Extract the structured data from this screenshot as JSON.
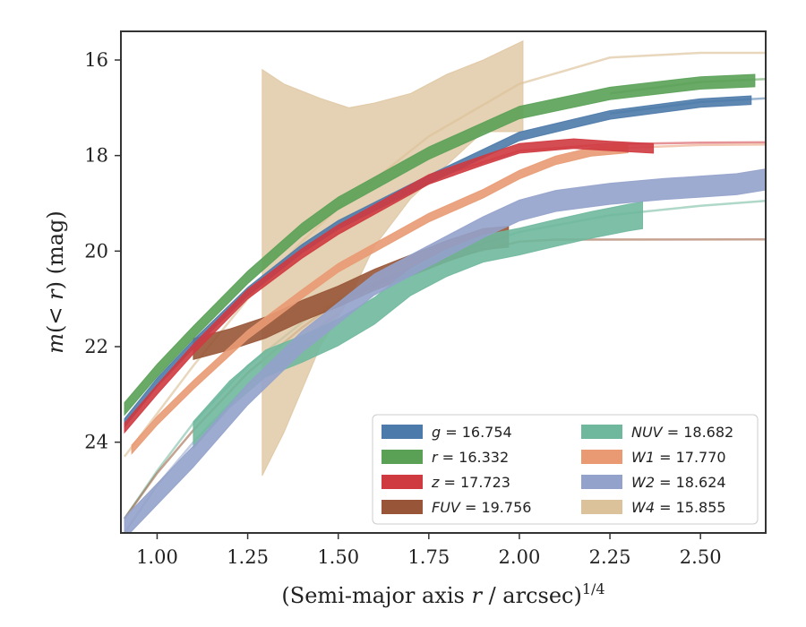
{
  "chart_data": {
    "type": "line",
    "xlabel": "(Semi-major axis r / arcsec)^1/4",
    "ylabel": "m(< r) (mag)",
    "xlim": [
      0.9,
      2.68
    ],
    "ylim": [
      25.9,
      15.4
    ],
    "y_inverted": true,
    "grid": false,
    "legend_placement": "bottom-right",
    "xticks": [
      "1.00",
      "1.25",
      "1.50",
      "1.75",
      "2.00",
      "2.25",
      "2.50"
    ],
    "yticks": [
      "16",
      "18",
      "20",
      "22",
      "24"
    ],
    "legend": [
      {
        "label": "g = 16.754",
        "color": "#4c7aaa"
      },
      {
        "label": "NUV = 18.682",
        "color": "#6fb89d"
      },
      {
        "label": "r = 16.332",
        "color": "#5aa156"
      },
      {
        "label": "W1 = 17.770",
        "color": "#e99a73"
      },
      {
        "label": "z = 17.723",
        "color": "#cf3a40"
      },
      {
        "label": "W2 = 18.624",
        "color": "#93a2cb"
      },
      {
        "label": "FUV = 19.756",
        "color": "#985537"
      },
      {
        "label": "W4 = 15.855",
        "color": "#dcc29a"
      }
    ],
    "series": [
      {
        "key": "g",
        "color": "#4c7aaa",
        "data": [
          [
            0.91,
            23.6
          ],
          [
            1.0,
            22.75
          ],
          [
            1.1,
            21.95
          ],
          [
            1.25,
            20.85
          ],
          [
            1.4,
            19.95
          ],
          [
            1.5,
            19.45
          ],
          [
            1.75,
            18.5
          ],
          [
            2.0,
            17.6
          ],
          [
            2.25,
            17.15
          ],
          [
            2.5,
            16.9
          ],
          [
            2.64,
            16.84
          ]
        ],
        "band": 0.09
      },
      {
        "key": "r",
        "color": "#5aa156",
        "data": [
          [
            0.91,
            23.3
          ],
          [
            1.0,
            22.5
          ],
          [
            1.1,
            21.7
          ],
          [
            1.25,
            20.55
          ],
          [
            1.4,
            19.55
          ],
          [
            1.5,
            19.0
          ],
          [
            1.75,
            17.95
          ],
          [
            2.0,
            17.1
          ],
          [
            2.25,
            16.7
          ],
          [
            2.5,
            16.48
          ],
          [
            2.65,
            16.43
          ]
        ],
        "band": 0.13
      },
      {
        "key": "z",
        "color": "#cf3a40",
        "data": [
          [
            0.91,
            23.7
          ],
          [
            1.0,
            22.9
          ],
          [
            1.1,
            22.05
          ],
          [
            1.25,
            20.9
          ],
          [
            1.4,
            20.05
          ],
          [
            1.5,
            19.55
          ],
          [
            1.75,
            18.5
          ],
          [
            1.9,
            18.1
          ],
          [
            2.0,
            17.85
          ],
          [
            2.15,
            17.75
          ],
          [
            2.25,
            17.8
          ],
          [
            2.37,
            17.85
          ]
        ],
        "band": 0.1
      },
      {
        "key": "W1",
        "color": "#e99a73",
        "data": [
          [
            0.93,
            24.15
          ],
          [
            1.0,
            23.55
          ],
          [
            1.1,
            22.8
          ],
          [
            1.25,
            21.75
          ],
          [
            1.4,
            20.9
          ],
          [
            1.5,
            20.35
          ],
          [
            1.75,
            19.3
          ],
          [
            1.9,
            18.8
          ],
          [
            2.0,
            18.4
          ],
          [
            2.1,
            18.1
          ],
          [
            2.2,
            17.92
          ],
          [
            2.3,
            17.85
          ]
        ],
        "band": 0.09
      },
      {
        "key": "W2",
        "color": "#93a2cb",
        "data": [
          [
            0.91,
            25.8
          ],
          [
            1.1,
            24.3
          ],
          [
            1.25,
            23.0
          ],
          [
            1.4,
            21.9
          ],
          [
            1.5,
            21.3
          ],
          [
            1.6,
            20.7
          ],
          [
            1.75,
            20.1
          ],
          [
            1.9,
            19.5
          ],
          [
            2.0,
            19.15
          ],
          [
            2.1,
            18.95
          ],
          [
            2.25,
            18.8
          ],
          [
            2.4,
            18.7
          ],
          [
            2.5,
            18.65
          ],
          [
            2.6,
            18.6
          ],
          [
            2.68,
            18.5
          ]
        ],
        "band": 0.22
      },
      {
        "key": "NUV",
        "color": "#6fb89d",
        "data": [
          [
            1.1,
            23.85
          ],
          [
            1.2,
            23.0
          ],
          [
            1.3,
            22.35
          ],
          [
            1.4,
            22.05
          ],
          [
            1.5,
            21.7
          ],
          [
            1.6,
            21.25
          ],
          [
            1.7,
            20.65
          ],
          [
            1.8,
            20.25
          ],
          [
            1.9,
            19.95
          ],
          [
            2.0,
            19.8
          ],
          [
            2.1,
            19.62
          ],
          [
            2.2,
            19.45
          ],
          [
            2.3,
            19.3
          ],
          [
            2.34,
            19.25
          ]
        ],
        "band": 0.28
      },
      {
        "key": "FUV",
        "color": "#985537",
        "data": [
          [
            1.1,
            22.05
          ],
          [
            1.2,
            21.85
          ],
          [
            1.3,
            21.6
          ],
          [
            1.4,
            21.25
          ],
          [
            1.5,
            20.95
          ],
          [
            1.6,
            20.6
          ],
          [
            1.7,
            20.3
          ],
          [
            1.8,
            20.0
          ],
          [
            1.9,
            19.75
          ],
          [
            1.97,
            19.7
          ]
        ],
        "band": 0.22
      },
      {
        "key": "W4",
        "color": "#dcc29a",
        "data": [
          [
            1.29,
            19.0
          ],
          [
            1.35,
            19.3
          ],
          [
            1.45,
            19.8
          ],
          [
            1.53,
            20.2
          ],
          [
            1.6,
            19.4
          ],
          [
            1.7,
            18.4
          ],
          [
            1.8,
            17.6
          ],
          [
            1.9,
            17.0
          ],
          [
            2.01,
            16.6
          ]
        ],
        "band_lower": [
          [
            1.29,
            24.7
          ],
          [
            1.35,
            23.8
          ],
          [
            1.45,
            22.0
          ],
          [
            1.53,
            21.0
          ],
          [
            1.6,
            19.9
          ],
          [
            1.7,
            18.9
          ],
          [
            1.8,
            18.2
          ],
          [
            1.9,
            17.5
          ],
          [
            2.01,
            17.5
          ]
        ],
        "band_upper": [
          [
            1.29,
            16.2
          ],
          [
            1.35,
            16.5
          ],
          [
            1.45,
            16.8
          ],
          [
            1.53,
            17.0
          ],
          [
            1.6,
            16.9
          ],
          [
            1.7,
            16.7
          ],
          [
            1.8,
            16.3
          ],
          [
            1.9,
            16.0
          ],
          [
            2.01,
            15.6
          ]
        ]
      }
    ],
    "model_curves": [
      {
        "key": "W4",
        "color": "#dcc29a",
        "opacity": 0.65,
        "data": [
          [
            0.91,
            24.3
          ],
          [
            1.0,
            23.4
          ],
          [
            1.1,
            22.4
          ],
          [
            1.25,
            21.0
          ],
          [
            1.4,
            19.8
          ],
          [
            1.5,
            19.1
          ],
          [
            1.75,
            17.6
          ],
          [
            2.0,
            16.5
          ],
          [
            2.25,
            15.95
          ],
          [
            2.5,
            15.85
          ],
          [
            2.68,
            15.85
          ]
        ]
      },
      {
        "key": "NUV",
        "color": "#6fb89d",
        "opacity": 0.55,
        "data": [
          [
            0.91,
            25.6
          ],
          [
            1.0,
            24.6
          ],
          [
            1.1,
            23.6
          ],
          [
            1.25,
            22.4
          ],
          [
            1.4,
            21.5
          ],
          [
            1.5,
            21.0
          ],
          [
            1.75,
            20.2
          ],
          [
            2.0,
            19.6
          ],
          [
            2.25,
            19.25
          ],
          [
            2.5,
            19.05
          ],
          [
            2.68,
            18.95
          ]
        ]
      },
      {
        "key": "FUV",
        "color": "#985537",
        "opacity": 0.55,
        "data": [
          [
            0.91,
            25.6
          ],
          [
            1.0,
            24.65
          ],
          [
            1.1,
            23.75
          ],
          [
            1.25,
            22.55
          ],
          [
            1.4,
            21.6
          ],
          [
            1.5,
            21.05
          ],
          [
            1.75,
            20.25
          ],
          [
            2.0,
            19.8
          ],
          [
            2.1,
            19.76
          ],
          [
            2.68,
            19.756
          ]
        ]
      },
      {
        "key": "W2",
        "color": "#93a2cb",
        "opacity": 0.55,
        "data": [
          [
            0.91,
            25.9
          ],
          [
            1.0,
            24.9
          ],
          [
            1.1,
            24.0
          ],
          [
            1.25,
            22.8
          ],
          [
            1.4,
            21.85
          ],
          [
            1.5,
            21.3
          ]
        ]
      },
      {
        "key": "z",
        "color": "#cf3a40",
        "opacity": 0.55,
        "data": [
          [
            1.75,
            18.5
          ],
          [
            2.0,
            17.9
          ],
          [
            2.25,
            17.76
          ],
          [
            2.5,
            17.73
          ],
          [
            2.68,
            17.723
          ]
        ]
      },
      {
        "key": "r",
        "color": "#5aa156",
        "opacity": 0.55,
        "data": [
          [
            2.25,
            16.7
          ],
          [
            2.5,
            16.46
          ],
          [
            2.68,
            16.4
          ]
        ]
      },
      {
        "key": "g",
        "color": "#4c7aaa",
        "opacity": 0.55,
        "data": [
          [
            2.25,
            17.12
          ],
          [
            2.5,
            16.88
          ],
          [
            2.68,
            16.8
          ]
        ]
      },
      {
        "key": "W1",
        "color": "#e99a73",
        "opacity": 0.55,
        "data": [
          [
            2.25,
            17.85
          ],
          [
            2.5,
            17.78
          ],
          [
            2.68,
            17.77
          ]
        ]
      }
    ]
  }
}
